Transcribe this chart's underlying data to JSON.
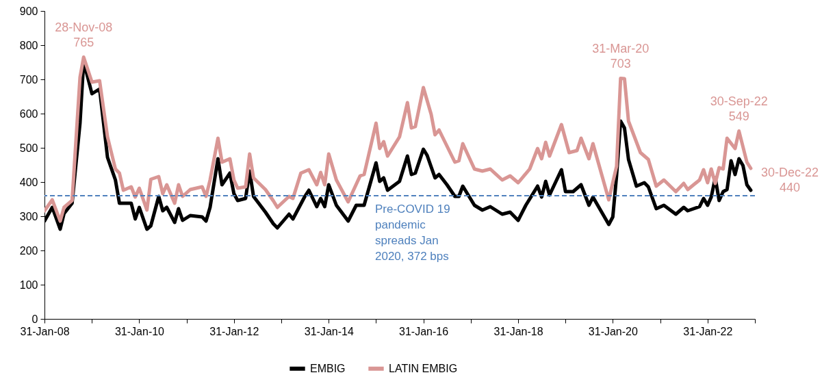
{
  "chart_data": {
    "type": "line",
    "legend": "bottom",
    "xlim": [
      "2008-01-31",
      "2023-01-31"
    ],
    "xticks": [
      {
        "value": "2008-01-31",
        "label": "31-Jan-08"
      },
      {
        "value": "2009-01-31",
        "label": null
      },
      {
        "value": "2010-01-31",
        "label": "31-Jan-10"
      },
      {
        "value": "2011-01-31",
        "label": null
      },
      {
        "value": "2012-01-31",
        "label": "31-Jan-12"
      },
      {
        "value": "2013-01-31",
        "label": null
      },
      {
        "value": "2014-01-31",
        "label": "31-Jan-14"
      },
      {
        "value": "2015-01-31",
        "label": null
      },
      {
        "value": "2016-01-31",
        "label": "31-Jan-16"
      },
      {
        "value": "2017-01-31",
        "label": null
      },
      {
        "value": "2018-01-31",
        "label": "31-Jan-18"
      },
      {
        "value": "2019-01-31",
        "label": null
      },
      {
        "value": "2020-01-31",
        "label": "31-Jan-20"
      },
      {
        "value": "2021-01-31",
        "label": null
      },
      {
        "value": "2022-01-31",
        "label": "31-Jan-22"
      },
      {
        "value": "2023-01-31",
        "label": null
      }
    ],
    "ylim": [
      0,
      900
    ],
    "yticks": [
      0,
      100,
      200,
      300,
      400,
      500,
      600,
      700,
      800,
      900
    ],
    "series": [
      {
        "name": "EMBIG",
        "color": "#000000",
        "x": [
          "2008-01-31",
          "2008-03-31",
          "2008-05-31",
          "2008-06-30",
          "2008-08-31",
          "2008-10-31",
          "2008-11-28",
          "2009-01-31",
          "2009-03-31",
          "2009-05-31",
          "2009-07-31",
          "2009-08-31",
          "2009-11-30",
          "2009-12-31",
          "2010-01-31",
          "2010-03-31",
          "2010-04-30",
          "2010-06-30",
          "2010-07-31",
          "2010-08-31",
          "2010-10-31",
          "2010-11-30",
          "2010-12-31",
          "2011-02-28",
          "2011-05-31",
          "2011-06-30",
          "2011-07-31",
          "2011-09-30",
          "2011-10-31",
          "2011-12-31",
          "2012-01-31",
          "2012-02-29",
          "2012-04-30",
          "2012-05-31",
          "2012-06-30",
          "2012-09-30",
          "2012-11-30",
          "2012-12-31",
          "2013-03-31",
          "2013-04-30",
          "2013-07-31",
          "2013-08-31",
          "2013-10-31",
          "2013-11-30",
          "2013-12-31",
          "2014-01-31",
          "2014-03-31",
          "2014-06-30",
          "2014-08-31",
          "2014-10-31",
          "2015-01-31",
          "2015-02-28",
          "2015-03-31",
          "2015-04-30",
          "2015-07-31",
          "2015-09-30",
          "2015-10-31",
          "2015-11-30",
          "2016-01-31",
          "2016-02-29",
          "2016-04-30",
          "2016-05-31",
          "2016-07-31",
          "2016-09-30",
          "2016-10-31",
          "2016-11-30",
          "2017-02-28",
          "2017-04-30",
          "2017-06-30",
          "2017-09-30",
          "2017-11-30",
          "2018-01-31",
          "2018-03-31",
          "2018-06-30",
          "2018-07-31",
          "2018-08-31",
          "2018-09-30",
          "2018-12-31",
          "2019-01-31",
          "2019-03-31",
          "2019-05-31",
          "2019-07-31",
          "2019-08-31",
          "2019-10-31",
          "2019-12-31",
          "2020-01-31",
          "2020-02-29",
          "2020-03-31",
          "2020-04-30",
          "2020-05-31",
          "2020-07-31",
          "2020-09-30",
          "2020-10-31",
          "2020-12-31",
          "2021-02-28",
          "2021-05-31",
          "2021-07-31",
          "2021-08-31",
          "2021-11-30",
          "2021-12-31",
          "2022-01-31",
          "2022-02-28",
          "2022-03-31",
          "2022-04-30",
          "2022-05-31",
          "2022-06-30",
          "2022-07-31",
          "2022-08-31",
          "2022-09-30",
          "2022-10-31",
          "2022-11-30",
          "2022-12-30"
        ],
        "values": [
          286,
          326,
          262,
          308,
          338,
          572,
          752,
          658,
          672,
          472,
          406,
          338,
          338,
          292,
          326,
          262,
          272,
          358,
          316,
          326,
          282,
          322,
          288,
          302,
          298,
          286,
          326,
          468,
          392,
          426,
          366,
          346,
          352,
          432,
          358,
          312,
          278,
          266,
          306,
          292,
          358,
          376,
          328,
          352,
          328,
          392,
          332,
          286,
          332,
          332,
          456,
          402,
          412,
          376,
          402,
          476,
          422,
          426,
          496,
          478,
          412,
          422,
          392,
          358,
          358,
          388,
          332,
          318,
          328,
          306,
          312,
          288,
          332,
          388,
          356,
          402,
          362,
          436,
          372,
          372,
          392,
          332,
          356,
          316,
          276,
          298,
          418,
          578,
          558,
          466,
          388,
          398,
          386,
          322,
          332,
          306,
          326,
          316,
          328,
          352,
          332,
          356,
          412,
          346,
          372,
          378,
          462,
          422,
          468,
          448,
          392,
          376
        ]
      },
      {
        "name": "LATIN EMBIG",
        "color": "#d99694",
        "x": [
          "2008-01-31",
          "2008-03-31",
          "2008-05-31",
          "2008-06-30",
          "2008-08-31",
          "2008-10-31",
          "2008-11-28",
          "2009-01-31",
          "2009-03-31",
          "2009-05-31",
          "2009-07-31",
          "2009-08-31",
          "2009-09-30",
          "2009-11-30",
          "2009-12-31",
          "2010-01-31",
          "2010-03-31",
          "2010-04-30",
          "2010-06-30",
          "2010-07-31",
          "2010-08-31",
          "2010-10-31",
          "2010-11-30",
          "2010-12-31",
          "2011-02-28",
          "2011-05-31",
          "2011-06-30",
          "2011-07-31",
          "2011-09-30",
          "2011-10-31",
          "2011-12-31",
          "2012-01-31",
          "2012-02-29",
          "2012-04-30",
          "2012-05-31",
          "2012-06-30",
          "2012-09-30",
          "2012-11-30",
          "2012-12-31",
          "2013-03-31",
          "2013-04-30",
          "2013-06-30",
          "2013-08-31",
          "2013-10-31",
          "2013-11-30",
          "2013-12-31",
          "2014-01-31",
          "2014-03-31",
          "2014-06-30",
          "2014-09-30",
          "2014-10-31",
          "2015-01-31",
          "2015-02-28",
          "2015-03-31",
          "2015-04-30",
          "2015-07-31",
          "2015-09-30",
          "2015-10-31",
          "2015-11-30",
          "2016-01-31",
          "2016-03-31",
          "2016-04-30",
          "2016-05-31",
          "2016-09-30",
          "2016-10-31",
          "2016-11-30",
          "2017-02-28",
          "2017-04-30",
          "2017-06-30",
          "2017-09-30",
          "2017-11-30",
          "2018-01-31",
          "2018-04-30",
          "2018-06-30",
          "2018-07-31",
          "2018-08-31",
          "2018-09-30",
          "2018-12-31",
          "2019-02-28",
          "2019-04-30",
          "2019-05-31",
          "2019-07-31",
          "2019-08-31",
          "2019-12-31",
          "2020-02-29",
          "2020-03-31",
          "2020-04-30",
          "2020-05-31",
          "2020-08-31",
          "2020-10-31",
          "2020-12-31",
          "2021-02-28",
          "2021-05-31",
          "2021-07-31",
          "2021-08-31",
          "2021-11-30",
          "2021-12-31",
          "2022-01-31",
          "2022-02-28",
          "2022-03-31",
          "2022-04-30",
          "2022-05-31",
          "2022-06-30",
          "2022-08-31",
          "2022-09-30",
          "2022-11-30",
          "2022-12-30"
        ],
        "values": [
          316,
          348,
          286,
          326,
          346,
          706,
          765,
          692,
          696,
          532,
          438,
          426,
          376,
          386,
          356,
          382,
          318,
          408,
          416,
          366,
          392,
          338,
          392,
          358,
          378,
          386,
          358,
          406,
          528,
          458,
          468,
          406,
          382,
          386,
          482,
          412,
          378,
          345,
          326,
          358,
          352,
          426,
          436,
          392,
          428,
          392,
          482,
          406,
          342,
          418,
          422,
          572,
          498,
          518,
          476,
          532,
          632,
          558,
          562,
          676,
          598,
          538,
          552,
          458,
          462,
          512,
          438,
          432,
          438,
          406,
          418,
          398,
          438,
          498,
          468,
          516,
          476,
          568,
          486,
          492,
          528,
          468,
          512,
          348,
          446,
          703,
          702,
          578,
          486,
          466,
          388,
          406,
          372,
          396,
          378,
          406,
          436,
          398,
          438,
          396,
          442,
          438,
          528,
          498,
          549,
          458,
          440
        ]
      }
    ],
    "ref_lines": [
      {
        "axis": "y",
        "value": 360,
        "label": "Pre-COVID 19 pandemic spreads Jan 2020, 372 bps",
        "color": "#4f81bd",
        "line_style": "dashed"
      }
    ],
    "annotations": [
      {
        "text": "28-Nov-08\n765",
        "x": "2008-11-28",
        "y": 765
      },
      {
        "text": "31-Mar-20\n703",
        "x": "2020-03-31",
        "y": 703
      },
      {
        "text": "30-Sep-22\n549",
        "x": "2022-09-30",
        "y": 549
      },
      {
        "text": "30-Dec-22\n440",
        "x": "2022-12-30",
        "y": 440
      }
    ]
  }
}
